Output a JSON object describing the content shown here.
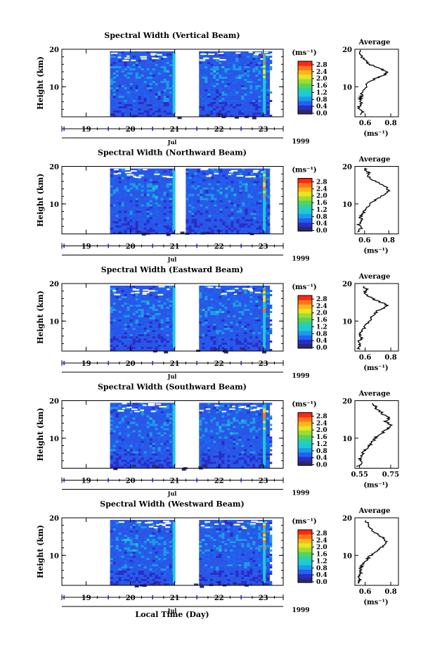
{
  "figure": {
    "x_title": "Local Time (Day)",
    "y_title": "Height (km)",
    "date_month": "Jul",
    "date_year": "1999",
    "colorbar_unit": "(ms⁻¹)",
    "profile_title": "Average",
    "profile_unit": "(ms⁻¹)",
    "colors": {
      "colormap": [
        "#2a2a6a",
        "#2c2cc8",
        "#1e64f0",
        "#1e9be6",
        "#1ec8dc",
        "#28d2aa",
        "#5ad25a",
        "#a0dc32",
        "#e6e61e",
        "#ffb41e",
        "#ff7814",
        "#ff2814"
      ],
      "background_field": "#2a55e6",
      "axis": "#000000",
      "day_marker": "#2020c0"
    }
  },
  "chart_data": [
    {
      "type": "heatmap",
      "title": "Spectral Width (Vertical Beam)",
      "ylabel": "Height (km)",
      "xlabel": "Local Time (Day)",
      "x_ticks": [
        "19",
        "20",
        "21",
        "22",
        "23"
      ],
      "y_ticks": [
        "10",
        "20"
      ],
      "ylim": [
        2,
        20
      ],
      "data_gap_days": [
        21.0,
        21.55
      ],
      "colorbar": {
        "unit": "(ms⁻¹)",
        "ticks": [
          "0.0",
          "0.4",
          "0.8",
          "1.2",
          "1.6",
          "2.0",
          "2.4",
          "2.8"
        ],
        "range": [
          0,
          2.8
        ]
      },
      "profile": {
        "title": "Average",
        "xlabel": "(ms⁻¹)",
        "x_ticks": [
          "0.6",
          "0.8"
        ],
        "xlim": [
          0.52,
          0.86
        ],
        "y_ticks": [
          "10",
          "20"
        ],
        "points": [
          [
            0.56,
            2.5
          ],
          [
            0.58,
            3.5
          ],
          [
            0.55,
            4.5
          ],
          [
            0.57,
            5.5
          ],
          [
            0.56,
            6.5
          ],
          [
            0.57,
            7.5
          ],
          [
            0.58,
            8.5
          ],
          [
            0.6,
            9.5
          ],
          [
            0.61,
            10.5
          ],
          [
            0.64,
            11.5
          ],
          [
            0.7,
            12.5
          ],
          [
            0.75,
            13.2
          ],
          [
            0.77,
            13.8
          ],
          [
            0.74,
            14.5
          ],
          [
            0.68,
            15.3
          ],
          [
            0.62,
            16.2
          ],
          [
            0.6,
            17
          ],
          [
            0.57,
            18
          ],
          [
            0.56,
            19
          ],
          [
            0.55,
            20
          ]
        ]
      }
    },
    {
      "type": "heatmap",
      "title": "Spectral Width (Northward Beam)",
      "ylabel": "Height (km)",
      "xlabel": "Local Time (Day)",
      "x_ticks": [
        "19",
        "20",
        "21",
        "22",
        "23"
      ],
      "y_ticks": [
        "10",
        "20"
      ],
      "ylim": [
        2,
        20
      ],
      "data_gap_days": [
        21.0,
        21.25
      ],
      "colorbar": {
        "unit": "(ms⁻¹)",
        "ticks": [
          "0.0",
          "0.4",
          "0.8",
          "1.2",
          "1.6",
          "2.0",
          "2.4",
          "2.8"
        ],
        "range": [
          0,
          2.8
        ]
      },
      "profile": {
        "title": "Average",
        "xlabel": "(ms⁻¹)",
        "x_ticks": [
          "0.6",
          "0.8"
        ],
        "xlim": [
          0.52,
          0.88
        ],
        "y_ticks": [
          "10",
          "20"
        ],
        "points": [
          [
            0.55,
            2.5
          ],
          [
            0.57,
            3.5
          ],
          [
            0.55,
            4.5
          ],
          [
            0.58,
            5.5
          ],
          [
            0.56,
            6.5
          ],
          [
            0.59,
            7.5
          ],
          [
            0.6,
            8.5
          ],
          [
            0.63,
            9.5
          ],
          [
            0.66,
            10.5
          ],
          [
            0.71,
            11.5
          ],
          [
            0.76,
            12.5
          ],
          [
            0.8,
            13.5
          ],
          [
            0.78,
            14.5
          ],
          [
            0.72,
            15.5
          ],
          [
            0.66,
            16.5
          ],
          [
            0.62,
            17.5
          ],
          [
            0.64,
            18.3
          ],
          [
            0.6,
            19
          ],
          [
            0.62,
            19.7
          ]
        ]
      }
    },
    {
      "type": "heatmap",
      "title": "Spectral Width (Eastward Beam)",
      "ylabel": "Height (km)",
      "xlabel": "Local Time (Day)",
      "x_ticks": [
        "19",
        "20",
        "21",
        "22",
        "23"
      ],
      "y_ticks": [
        "10",
        "20"
      ],
      "ylim": [
        2,
        20
      ],
      "data_gap_days": [
        21.0,
        21.55
      ],
      "colorbar": {
        "unit": "(ms⁻¹)",
        "ticks": [
          "0.0",
          "0.4",
          "0.8",
          "1.2",
          "1.6",
          "2.0",
          "2.4",
          "2.8"
        ],
        "range": [
          0,
          2.8
        ]
      },
      "profile": {
        "title": "Average",
        "xlabel": "(ms⁻¹)",
        "x_ticks": [
          "0.6",
          "0.8"
        ],
        "xlim": [
          0.52,
          0.86
        ],
        "y_ticks": [
          "10",
          "20"
        ],
        "points": [
          [
            0.55,
            2.5
          ],
          [
            0.56,
            3.5
          ],
          [
            0.55,
            4.5
          ],
          [
            0.57,
            5.5
          ],
          [
            0.56,
            6.5
          ],
          [
            0.58,
            7.5
          ],
          [
            0.6,
            8.5
          ],
          [
            0.62,
            9.5
          ],
          [
            0.64,
            10.5
          ],
          [
            0.66,
            11.5
          ],
          [
            0.69,
            12.5
          ],
          [
            0.73,
            13.3
          ],
          [
            0.78,
            14
          ],
          [
            0.74,
            14.8
          ],
          [
            0.68,
            15.5
          ],
          [
            0.63,
            16.5
          ],
          [
            0.6,
            17.5
          ],
          [
            0.61,
            18.5
          ],
          [
            0.58,
            19.5
          ]
        ]
      }
    },
    {
      "type": "heatmap",
      "title": "Spectral Width (Southward Beam)",
      "ylabel": "Height (km)",
      "xlabel": "Local Time (Day)",
      "x_ticks": [
        "19",
        "20",
        "21",
        "22",
        "23"
      ],
      "y_ticks": [
        "10",
        "20"
      ],
      "ylim": [
        2,
        20
      ],
      "data_gap_days": [
        21.0,
        21.55
      ],
      "colorbar": {
        "unit": "(ms⁻¹)",
        "ticks": [
          "0.0",
          "0.4",
          "0.8",
          "1.2",
          "1.6",
          "2.0",
          "2.4",
          "2.8"
        ],
        "range": [
          0,
          2.8
        ]
      },
      "profile": {
        "title": "Average",
        "xlabel": "(ms⁻¹)",
        "x_ticks": [
          "0.55",
          "0.75"
        ],
        "xlim": [
          0.52,
          0.8
        ],
        "y_ticks": [
          "10",
          "20"
        ],
        "points": [
          [
            0.54,
            2.5
          ],
          [
            0.56,
            3.5
          ],
          [
            0.55,
            4.5
          ],
          [
            0.57,
            5.5
          ],
          [
            0.58,
            6.5
          ],
          [
            0.6,
            7.5
          ],
          [
            0.62,
            8.5
          ],
          [
            0.64,
            9.5
          ],
          [
            0.66,
            10.5
          ],
          [
            0.7,
            11.5
          ],
          [
            0.73,
            12.5
          ],
          [
            0.75,
            13.5
          ],
          [
            0.72,
            14.5
          ],
          [
            0.74,
            15.5
          ],
          [
            0.7,
            16.5
          ],
          [
            0.67,
            17.5
          ],
          [
            0.65,
            18.5
          ],
          [
            0.62,
            19.5
          ]
        ]
      }
    },
    {
      "type": "heatmap",
      "title": "Spectral Width (Westward Beam)",
      "ylabel": "Height (km)",
      "xlabel": "Local Time (Day)",
      "x_ticks": [
        "19",
        "20",
        "21",
        "22",
        "23"
      ],
      "y_ticks": [
        "10",
        "20"
      ],
      "ylim": [
        2,
        20
      ],
      "data_gap_days": [
        21.0,
        21.55
      ],
      "colorbar": {
        "unit": "(ms⁻¹)",
        "ticks": [
          "0.0",
          "0.4",
          "0.8",
          "1.2",
          "1.6",
          "2.0",
          "2.4",
          "2.8"
        ],
        "range": [
          0,
          2.8
        ]
      },
      "profile": {
        "title": "Average",
        "xlabel": "(ms⁻¹)",
        "x_ticks": [
          "0.6",
          "0.8"
        ],
        "xlim": [
          0.52,
          0.86
        ],
        "y_ticks": [
          "10",
          "20"
        ],
        "points": [
          [
            0.55,
            2.5
          ],
          [
            0.56,
            3.5
          ],
          [
            0.55,
            4.5
          ],
          [
            0.57,
            5.5
          ],
          [
            0.56,
            6.5
          ],
          [
            0.58,
            7.5
          ],
          [
            0.6,
            8.5
          ],
          [
            0.63,
            9.5
          ],
          [
            0.66,
            10.5
          ],
          [
            0.7,
            11.5
          ],
          [
            0.74,
            12.5
          ],
          [
            0.77,
            13.5
          ],
          [
            0.75,
            14.5
          ],
          [
            0.7,
            15.5
          ],
          [
            0.66,
            16.5
          ],
          [
            0.63,
            17.5
          ],
          [
            0.62,
            18.5
          ],
          [
            0.6,
            19.5
          ]
        ]
      }
    }
  ]
}
